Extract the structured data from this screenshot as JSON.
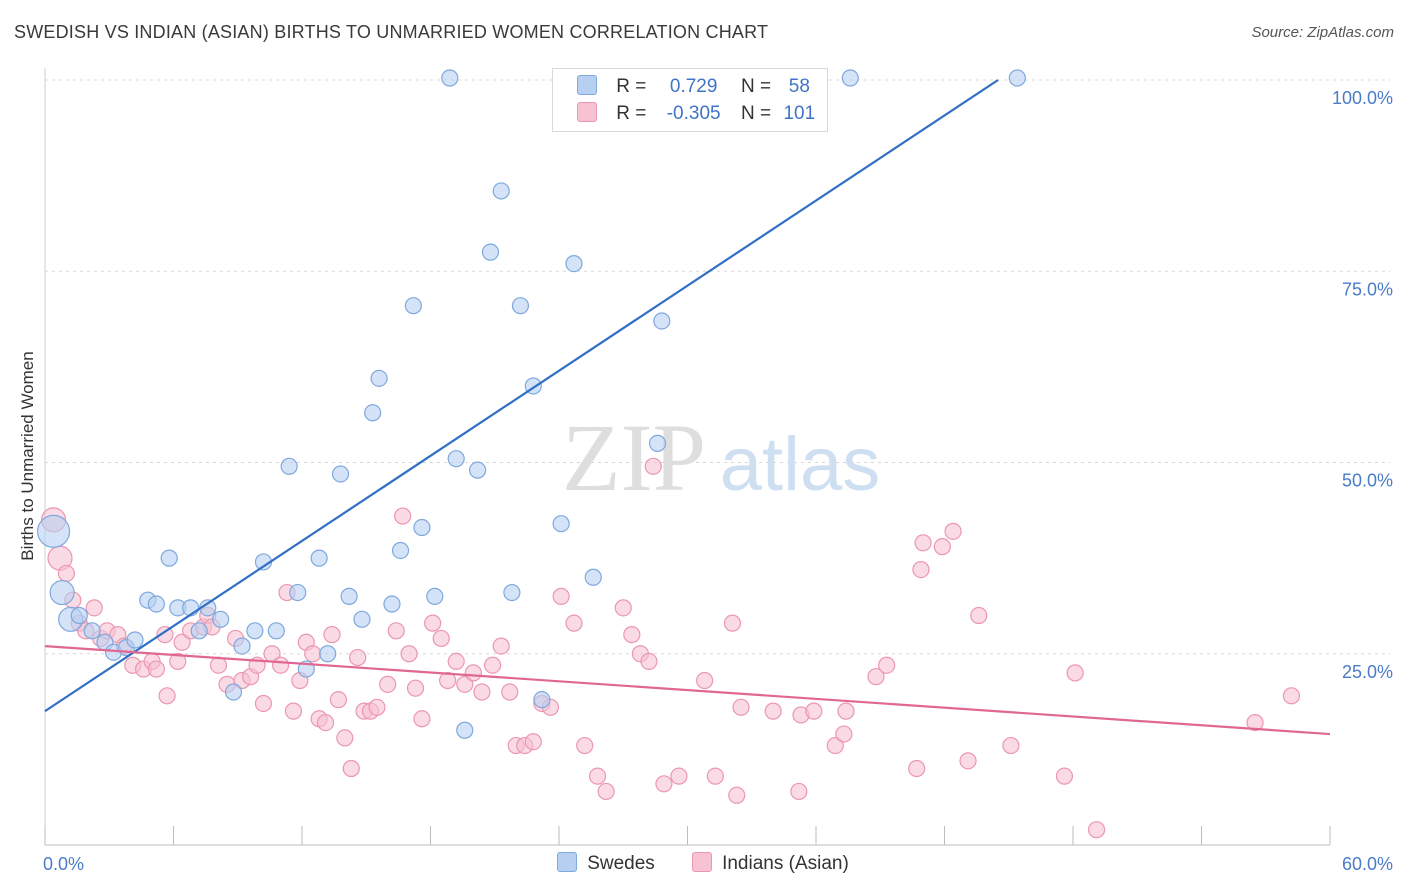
{
  "title": "SWEDISH VS INDIAN (ASIAN) BIRTHS TO UNMARRIED WOMEN CORRELATION CHART",
  "source": "Source: ZipAtlas.com",
  "watermark": {
    "zip": "ZIP",
    "atlas": "atlas"
  },
  "legend": {
    "swedes": {
      "r_label": "R =",
      "r_value": "0.729",
      "n_label": "N =",
      "n_value": "58"
    },
    "indians": {
      "r_label": "R =",
      "r_value": "-0.305",
      "n_label": "N =",
      "n_value": "101"
    }
  },
  "bottom_legend": {
    "swedes": "Swedes",
    "indians": "Indians (Asian)"
  },
  "colors": {
    "swedes_fill": "#b7d0f2",
    "swedes_stroke": "#7fa8dd",
    "swedes_line": "#2f6fc6",
    "indians_fill": "#f7c2d2",
    "indians_stroke": "#eb97b2",
    "indians_line": "#e06794",
    "axis_label": "#4a7cc7",
    "grid": "#d8d8d8"
  },
  "chart_data": {
    "type": "scatter",
    "title": "SWEDISH VS INDIAN (ASIAN) BIRTHS TO UNMARRIED WOMEN CORRELATION CHART",
    "xlabel": "",
    "ylabel": "Births to Unmarried Women",
    "xlim": [
      0,
      60
    ],
    "ylim": [
      0,
      100
    ],
    "x_tick_labels": [
      "0.0%",
      "60.0%"
    ],
    "y_tick_labels": [
      "25.0%",
      "50.0%",
      "75.0%",
      "100.0%"
    ],
    "y_ticks": [
      25,
      50,
      75,
      100
    ],
    "grid": true,
    "legend_position": "top-center",
    "series": [
      {
        "name": "Swedes",
        "r": 0.729,
        "n": 58,
        "trend": [
          [
            0,
            17.5
          ],
          [
            44.5,
            101.5
          ]
        ],
        "points": [
          [
            0.4,
            41,
            3
          ],
          [
            0.8,
            33,
            2
          ],
          [
            1.2,
            29.5,
            2
          ],
          [
            1.6,
            30,
            1
          ],
          [
            2.2,
            28,
            1
          ],
          [
            2.8,
            26.5,
            1
          ],
          [
            3.2,
            25.2,
            1
          ],
          [
            3.8,
            25.8,
            1
          ],
          [
            4.2,
            26.8,
            1
          ],
          [
            4.8,
            32,
            1
          ],
          [
            5.2,
            31.5,
            1
          ],
          [
            5.8,
            37.5,
            1
          ],
          [
            6.2,
            31,
            1
          ],
          [
            6.8,
            31,
            1
          ],
          [
            7.2,
            28,
            1
          ],
          [
            7.6,
            31,
            1
          ],
          [
            8.2,
            29.5,
            1
          ],
          [
            8.8,
            20,
            1
          ],
          [
            9.2,
            26,
            1
          ],
          [
            9.8,
            28,
            1
          ],
          [
            10.2,
            37,
            1
          ],
          [
            10.8,
            28,
            1
          ],
          [
            11.4,
            49.5,
            1
          ],
          [
            11.8,
            33,
            1
          ],
          [
            12.2,
            23,
            1
          ],
          [
            12.8,
            37.5,
            1
          ],
          [
            13.2,
            25,
            1
          ],
          [
            13.8,
            48.5,
            1
          ],
          [
            14.2,
            32.5,
            1
          ],
          [
            14.8,
            29.5,
            1
          ],
          [
            15.3,
            56.5,
            1
          ],
          [
            15.6,
            61,
            1
          ],
          [
            16.2,
            31.5,
            1
          ],
          [
            16.6,
            38.5,
            1
          ],
          [
            17.2,
            70.5,
            1
          ],
          [
            17.6,
            41.5,
            1
          ],
          [
            18.2,
            32.5,
            1
          ],
          [
            18.9,
            105,
            1
          ],
          [
            19.2,
            50.5,
            1
          ],
          [
            19.6,
            15,
            1
          ],
          [
            20.2,
            49,
            1
          ],
          [
            20.8,
            77.5,
            1
          ],
          [
            21.3,
            85.5,
            1
          ],
          [
            21.8,
            33,
            1
          ],
          [
            22.2,
            70.5,
            1
          ],
          [
            22.8,
            60,
            1
          ],
          [
            23.2,
            19,
            1
          ],
          [
            24.1,
            42,
            1
          ],
          [
            24.7,
            76,
            1
          ],
          [
            25.6,
            35,
            1
          ],
          [
            27.2,
            105,
            1
          ],
          [
            27.8,
            105,
            1
          ],
          [
            28.6,
            52.5,
            1
          ],
          [
            28.8,
            68.5,
            1
          ],
          [
            31.2,
            105,
            1
          ],
          [
            32.2,
            105,
            1
          ],
          [
            37.6,
            105,
            1
          ],
          [
            45.4,
            105,
            1
          ]
        ]
      },
      {
        "name": "Indians (Asian)",
        "r": -0.305,
        "n": 101,
        "trend": [
          [
            0,
            26
          ],
          [
            60,
            14.5
          ]
        ],
        "points": [
          [
            0.4,
            42.5,
            2
          ],
          [
            0.7,
            37.5,
            2
          ],
          [
            1.0,
            35.5,
            1
          ],
          [
            1.3,
            32,
            1
          ],
          [
            1.6,
            29,
            1
          ],
          [
            1.9,
            28,
            1
          ],
          [
            2.3,
            31,
            1
          ],
          [
            2.6,
            27,
            1
          ],
          [
            2.9,
            28,
            1
          ],
          [
            3.4,
            27.5,
            1
          ],
          [
            3.7,
            26,
            1
          ],
          [
            4.1,
            23.5,
            1
          ],
          [
            4.6,
            23,
            1
          ],
          [
            5.0,
            24,
            1
          ],
          [
            5.2,
            23,
            1
          ],
          [
            5.6,
            27.5,
            1
          ],
          [
            5.7,
            19.5,
            1
          ],
          [
            6.2,
            24,
            1
          ],
          [
            6.4,
            26.5,
            1
          ],
          [
            6.8,
            28,
            1
          ],
          [
            7.4,
            28.5,
            1
          ],
          [
            7.6,
            30,
            1
          ],
          [
            7.8,
            28.5,
            1
          ],
          [
            8.1,
            23.5,
            1
          ],
          [
            8.5,
            21,
            1
          ],
          [
            8.9,
            27,
            1
          ],
          [
            9.2,
            21.5,
            1
          ],
          [
            9.6,
            22,
            1
          ],
          [
            9.9,
            23.5,
            1
          ],
          [
            10.2,
            18.5,
            1
          ],
          [
            10.6,
            25,
            1
          ],
          [
            11.0,
            23.5,
            1
          ],
          [
            11.3,
            33,
            1
          ],
          [
            11.6,
            17.5,
            1
          ],
          [
            11.9,
            21.5,
            1
          ],
          [
            12.2,
            26.5,
            1
          ],
          [
            12.5,
            25,
            1
          ],
          [
            12.8,
            16.5,
            1
          ],
          [
            13.1,
            16,
            1
          ],
          [
            13.4,
            27.5,
            1
          ],
          [
            13.7,
            19,
            1
          ],
          [
            14.0,
            14,
            1
          ],
          [
            14.3,
            10,
            1
          ],
          [
            14.6,
            24.5,
            1
          ],
          [
            14.9,
            17.5,
            1
          ],
          [
            15.2,
            17.5,
            1
          ],
          [
            15.5,
            18,
            1
          ],
          [
            16.0,
            21,
            1
          ],
          [
            16.4,
            28,
            1
          ],
          [
            16.7,
            43,
            1
          ],
          [
            17.0,
            25,
            1
          ],
          [
            17.3,
            20.5,
            1
          ],
          [
            17.6,
            16.5,
            1
          ],
          [
            18.1,
            29,
            1
          ],
          [
            18.5,
            27,
            1
          ],
          [
            18.8,
            21.5,
            1
          ],
          [
            19.2,
            24,
            1
          ],
          [
            19.6,
            21,
            1
          ],
          [
            20.0,
            22.5,
            1
          ],
          [
            20.4,
            20,
            1
          ],
          [
            20.9,
            23.5,
            1
          ],
          [
            21.3,
            26,
            1
          ],
          [
            21.7,
            20,
            1
          ],
          [
            22.0,
            13,
            1
          ],
          [
            22.4,
            13,
            1
          ],
          [
            22.8,
            13.5,
            1
          ],
          [
            23.2,
            18.5,
            1
          ],
          [
            23.6,
            18,
            1
          ],
          [
            24.1,
            32.5,
            1
          ],
          [
            24.7,
            29,
            1
          ],
          [
            25.2,
            13,
            1
          ],
          [
            25.8,
            9,
            1
          ],
          [
            26.2,
            7,
            1
          ],
          [
            27.0,
            31,
            1
          ],
          [
            27.4,
            27.5,
            1
          ],
          [
            27.8,
            25,
            1
          ],
          [
            28.2,
            24,
            1
          ],
          [
            28.4,
            49.5,
            1
          ],
          [
            28.9,
            8,
            1
          ],
          [
            29.6,
            9,
            1
          ],
          [
            30.8,
            21.5,
            1
          ],
          [
            31.3,
            9,
            1
          ],
          [
            32.1,
            29,
            1
          ],
          [
            32.3,
            6.5,
            1
          ],
          [
            32.5,
            18,
            1
          ],
          [
            34.0,
            17.5,
            1
          ],
          [
            35.2,
            7,
            1
          ],
          [
            35.3,
            17,
            1
          ],
          [
            35.9,
            17.5,
            1
          ],
          [
            36.9,
            13,
            1
          ],
          [
            37.3,
            14.5,
            1
          ],
          [
            37.4,
            17.5,
            1
          ],
          [
            38.8,
            22,
            1
          ],
          [
            39.3,
            23.5,
            1
          ],
          [
            40.7,
            10,
            1
          ],
          [
            40.9,
            36,
            1
          ],
          [
            41.0,
            39.5,
            1
          ],
          [
            41.9,
            39,
            1
          ],
          [
            42.4,
            41,
            1
          ],
          [
            43.1,
            11,
            1
          ],
          [
            43.6,
            30,
            1
          ],
          [
            45.1,
            13,
            1
          ],
          [
            47.6,
            9,
            1
          ],
          [
            48.1,
            22.5,
            1
          ],
          [
            49.1,
            2,
            1
          ],
          [
            58.2,
            19.5,
            1
          ],
          [
            56.5,
            16,
            1
          ]
        ]
      }
    ]
  }
}
